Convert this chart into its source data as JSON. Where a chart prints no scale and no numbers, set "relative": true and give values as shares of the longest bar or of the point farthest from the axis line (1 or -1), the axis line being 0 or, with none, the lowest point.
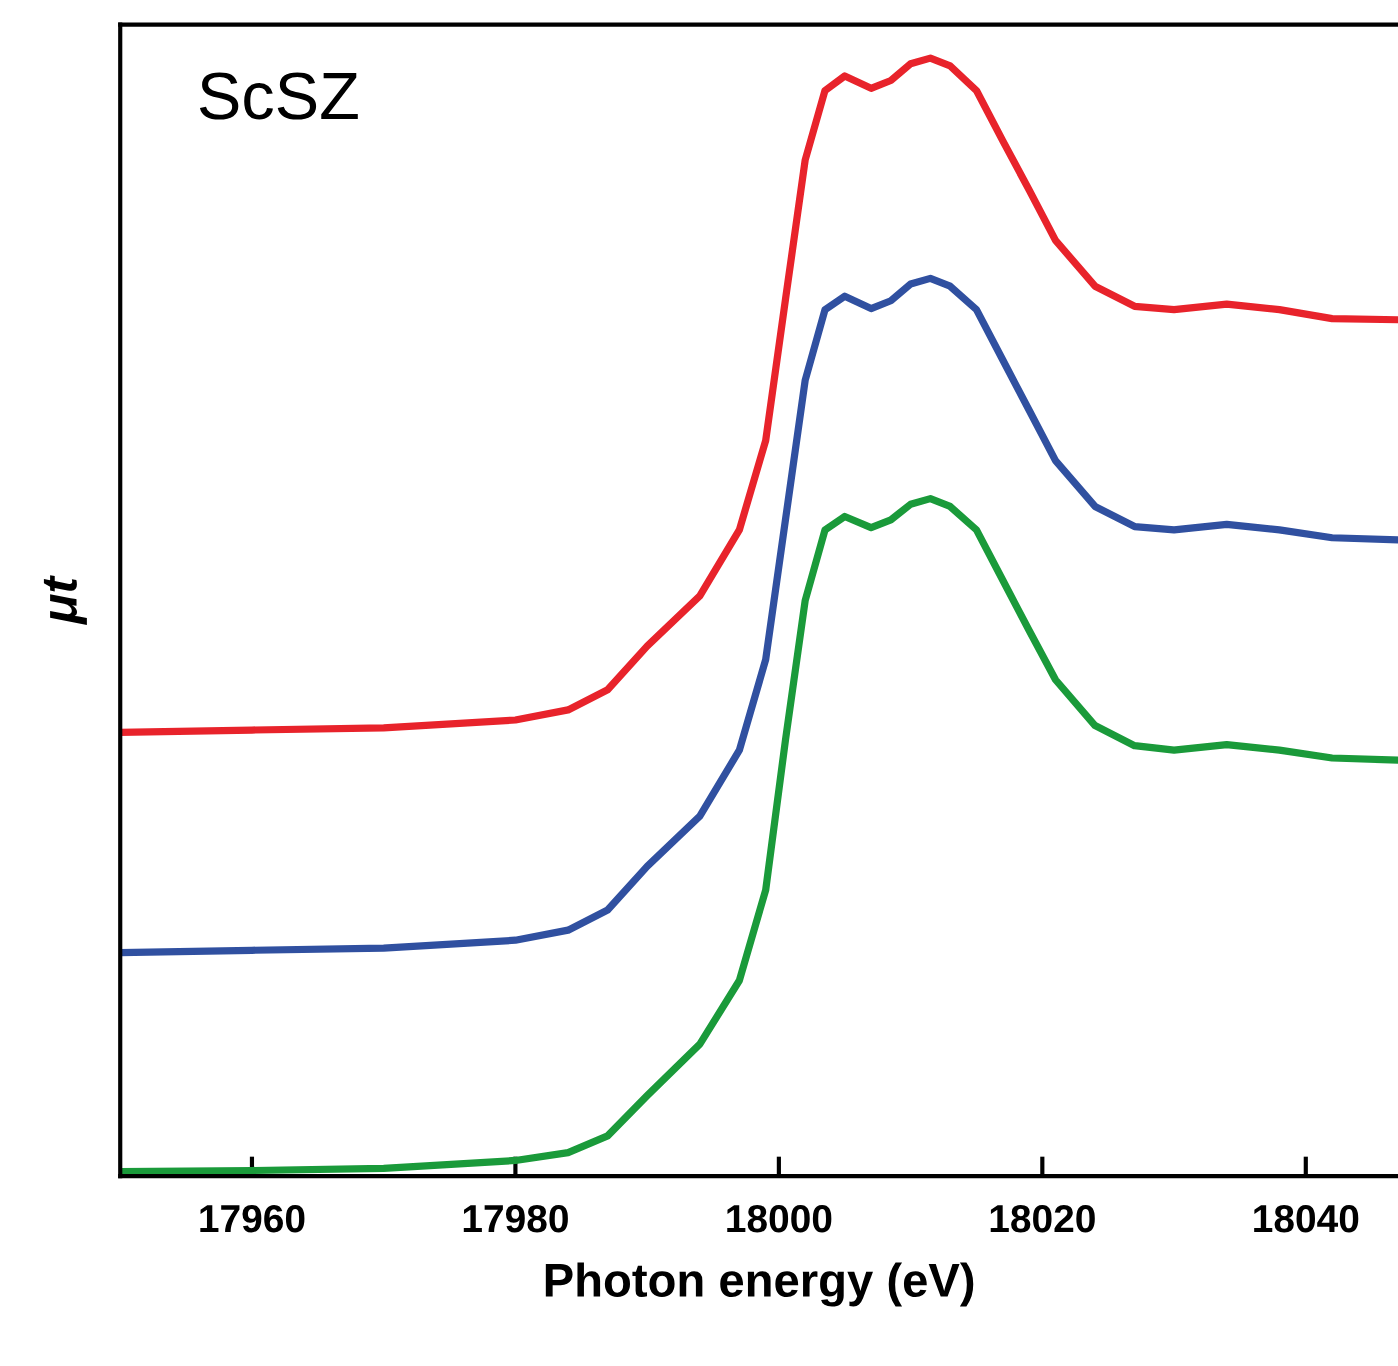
{
  "chart_data": {
    "type": "line",
    "relative": true,
    "xlabel": "Photon energy (eV)",
    "ylabel": "μt",
    "annotations": [
      "ScSZ"
    ],
    "xlim": [
      17950,
      18047
    ],
    "xticks": [
      17960,
      17980,
      18000,
      18020,
      18040
    ],
    "x": [
      17950,
      17960,
      17970,
      17980,
      17984,
      17987,
      17990,
      17994,
      17997,
      17999,
      18000.5,
      18002,
      18003.5,
      18005,
      18007,
      18008.5,
      18010,
      18011.5,
      18013,
      18015,
      18017,
      18019,
      18021,
      18024,
      18027,
      18030,
      18034,
      18038,
      18042,
      18047
    ],
    "grid": false,
    "legend": false,
    "marker": "none",
    "line_style": "solid",
    "series": [
      {
        "color": "#e8232b",
        "values": [
          0.397,
          0.399,
          0.401,
          0.408,
          0.417,
          0.435,
          0.474,
          0.519,
          0.578,
          0.658,
          0.784,
          0.909,
          0.971,
          0.984,
          0.973,
          0.98,
          0.995,
          1.0,
          0.993,
          0.971,
          0.926,
          0.882,
          0.837,
          0.796,
          0.778,
          0.775,
          0.78,
          0.775,
          0.767,
          0.766
        ]
      },
      {
        "color": "#3050a0",
        "values": [
          0.2,
          0.202,
          0.204,
          0.211,
          0.22,
          0.238,
          0.277,
          0.322,
          0.381,
          0.462,
          0.587,
          0.712,
          0.775,
          0.787,
          0.776,
          0.783,
          0.798,
          0.803,
          0.796,
          0.775,
          0.73,
          0.685,
          0.64,
          0.599,
          0.581,
          0.578,
          0.583,
          0.578,
          0.571,
          0.569
        ]
      },
      {
        "color": "#1a9a3a",
        "values": [
          0.004,
          0.005,
          0.007,
          0.014,
          0.021,
          0.036,
          0.072,
          0.118,
          0.175,
          0.256,
          0.39,
          0.515,
          0.578,
          0.59,
          0.58,
          0.587,
          0.601,
          0.606,
          0.599,
          0.578,
          0.533,
          0.488,
          0.444,
          0.403,
          0.385,
          0.381,
          0.386,
          0.381,
          0.374,
          0.372
        ]
      }
    ]
  }
}
